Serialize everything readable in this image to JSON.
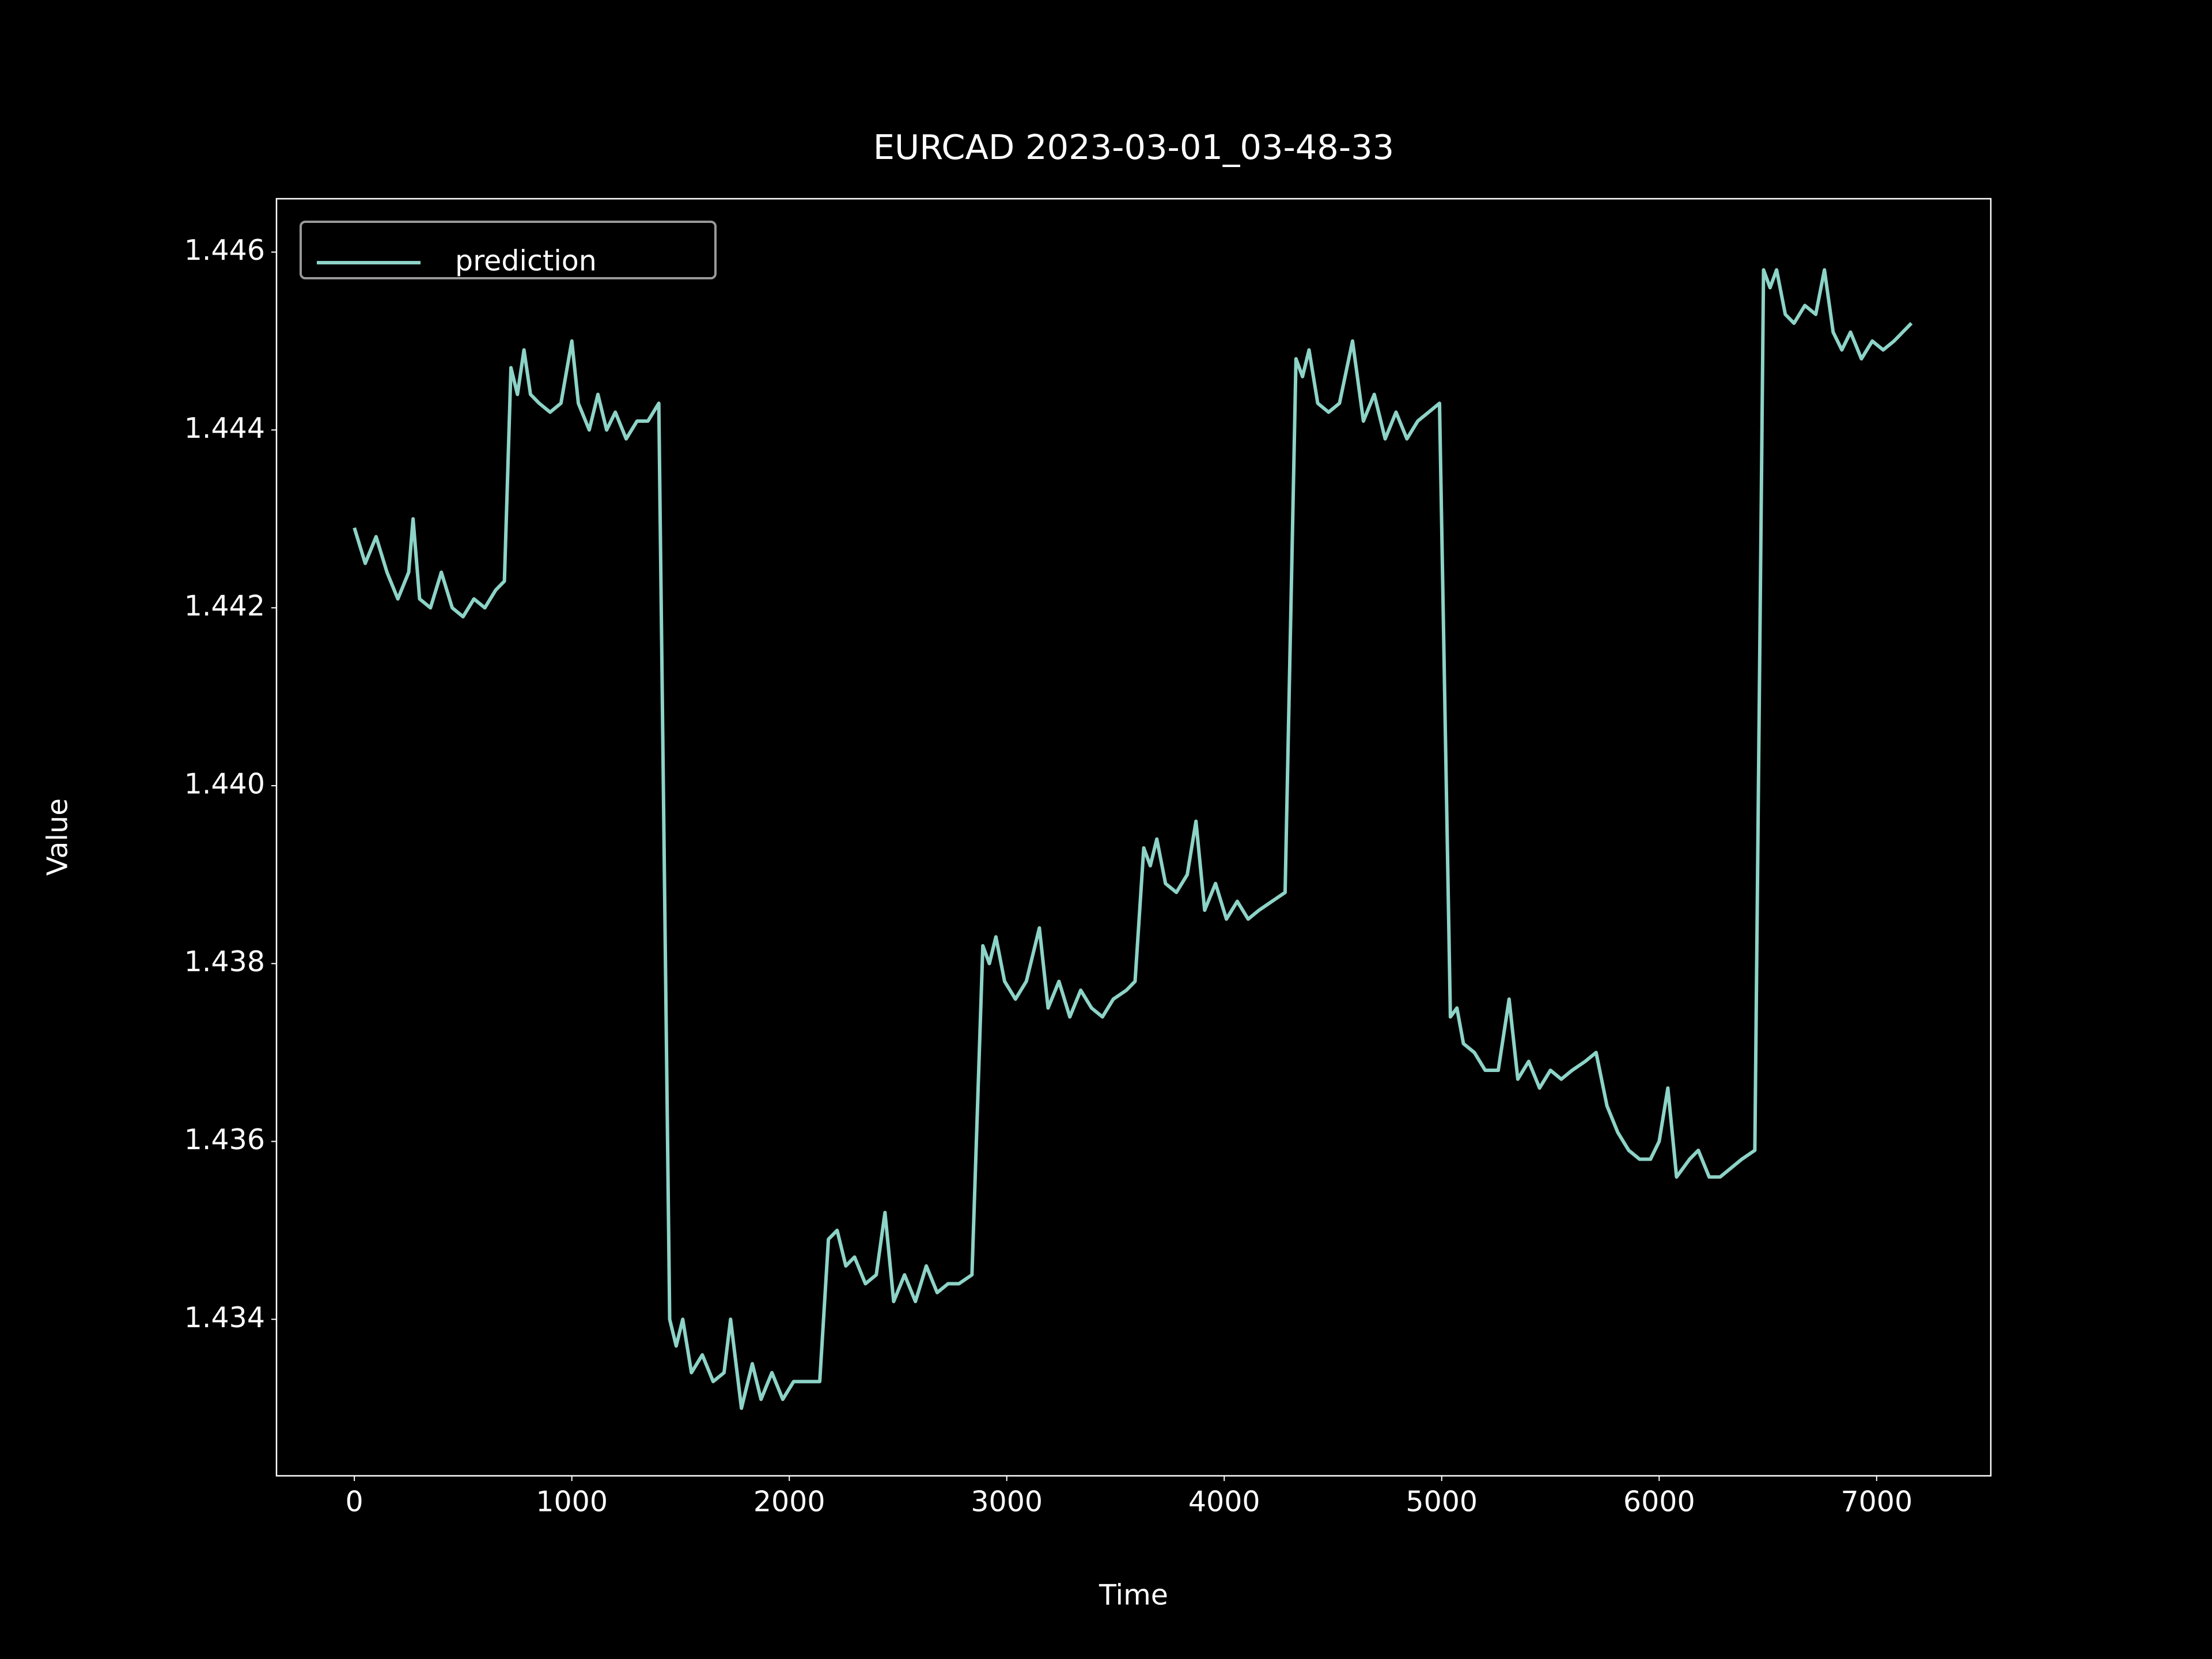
{
  "chart_data": {
    "type": "line",
    "title": "EURCAD 2023-03-01_03-48-33",
    "x_label": "Time",
    "y_label": "Value",
    "x": [
      0,
      50,
      100,
      150,
      200,
      250,
      270,
      300,
      350,
      400,
      450,
      500,
      550,
      600,
      650,
      690,
      720,
      750,
      780,
      810,
      850,
      900,
      950,
      1000,
      1030,
      1080,
      1120,
      1160,
      1200,
      1250,
      1300,
      1350,
      1400,
      1450,
      1480,
      1510,
      1550,
      1600,
      1650,
      1700,
      1730,
      1780,
      1830,
      1870,
      1920,
      1970,
      2020,
      2080,
      2140,
      2180,
      2220,
      2260,
      2300,
      2350,
      2400,
      2440,
      2480,
      2530,
      2580,
      2630,
      2680,
      2730,
      2780,
      2840,
      2890,
      2920,
      2950,
      2990,
      3040,
      3090,
      3150,
      3190,
      3240,
      3290,
      3340,
      3390,
      3440,
      3490,
      3550,
      3590,
      3630,
      3660,
      3690,
      3730,
      3780,
      3830,
      3870,
      3910,
      3960,
      4010,
      4060,
      4110,
      4160,
      4220,
      4280,
      4330,
      4360,
      4390,
      4430,
      4480,
      4530,
      4590,
      4640,
      4690,
      4740,
      4790,
      4840,
      4890,
      4940,
      4990,
      5040,
      5070,
      5100,
      5150,
      5200,
      5260,
      5310,
      5350,
      5400,
      5450,
      5500,
      5550,
      5600,
      5660,
      5710,
      5760,
      5810,
      5860,
      5910,
      5960,
      6000,
      6040,
      6080,
      6140,
      6180,
      6230,
      6280,
      6330,
      6380,
      6440,
      6480,
      6510,
      6540,
      6580,
      6620,
      6670,
      6720,
      6760,
      6800,
      6840,
      6880,
      6930,
      6980,
      7030,
      7080,
      7120,
      7160
    ],
    "series": [
      {
        "name": "prediction",
        "color": "#8dd3c7",
        "values": [
          1.4429,
          1.4425,
          1.4428,
          1.4424,
          1.4421,
          1.4424,
          1.443,
          1.4421,
          1.442,
          1.4424,
          1.442,
          1.4419,
          1.4421,
          1.442,
          1.4422,
          1.4423,
          1.4447,
          1.4444,
          1.4449,
          1.4444,
          1.4443,
          1.4442,
          1.4443,
          1.445,
          1.4443,
          1.444,
          1.4444,
          1.444,
          1.4442,
          1.4439,
          1.4441,
          1.4441,
          1.4443,
          1.434,
          1.4337,
          1.434,
          1.4334,
          1.4336,
          1.4333,
          1.4334,
          1.434,
          1.433,
          1.4335,
          1.4331,
          1.4334,
          1.4331,
          1.4333,
          1.4333,
          1.4333,
          1.4349,
          1.435,
          1.4346,
          1.4347,
          1.4344,
          1.4345,
          1.4352,
          1.4342,
          1.4345,
          1.4342,
          1.4346,
          1.4343,
          1.4344,
          1.4344,
          1.4345,
          1.4382,
          1.438,
          1.4383,
          1.4378,
          1.4376,
          1.4378,
          1.4384,
          1.4375,
          1.4378,
          1.4374,
          1.4377,
          1.4375,
          1.4374,
          1.4376,
          1.4377,
          1.4378,
          1.4393,
          1.4391,
          1.4394,
          1.4389,
          1.4388,
          1.439,
          1.4396,
          1.4386,
          1.4389,
          1.4385,
          1.4387,
          1.4385,
          1.4386,
          1.4387,
          1.4388,
          1.4448,
          1.4446,
          1.4449,
          1.4443,
          1.4442,
          1.4443,
          1.445,
          1.4441,
          1.4444,
          1.4439,
          1.4442,
          1.4439,
          1.4441,
          1.4442,
          1.4443,
          1.4374,
          1.4375,
          1.4371,
          1.437,
          1.4368,
          1.4368,
          1.4376,
          1.4367,
          1.4369,
          1.4366,
          1.4368,
          1.4367,
          1.4368,
          1.4369,
          1.437,
          1.4364,
          1.4361,
          1.4359,
          1.4358,
          1.4358,
          1.436,
          1.4366,
          1.4356,
          1.4358,
          1.4359,
          1.4356,
          1.4356,
          1.4357,
          1.4358,
          1.4359,
          1.4458,
          1.4456,
          1.4458,
          1.4453,
          1.4452,
          1.4454,
          1.4453,
          1.4458,
          1.4451,
          1.4449,
          1.4451,
          1.4448,
          1.445,
          1.4449,
          1.445,
          1.4451,
          1.4452
        ]
      }
    ],
    "xlim": [
      -358,
      7525
    ],
    "ylim": [
      1.43224,
      1.4466
    ],
    "xticks": [
      0,
      1000,
      2000,
      3000,
      4000,
      5000,
      6000,
      7000
    ],
    "yticks": [
      1.434,
      1.436,
      1.438,
      {
        "value": 1.44,
        "label": "1.440"
      },
      1.442,
      1.444,
      1.446
    ],
    "legend": "upper left",
    "grid": false
  }
}
